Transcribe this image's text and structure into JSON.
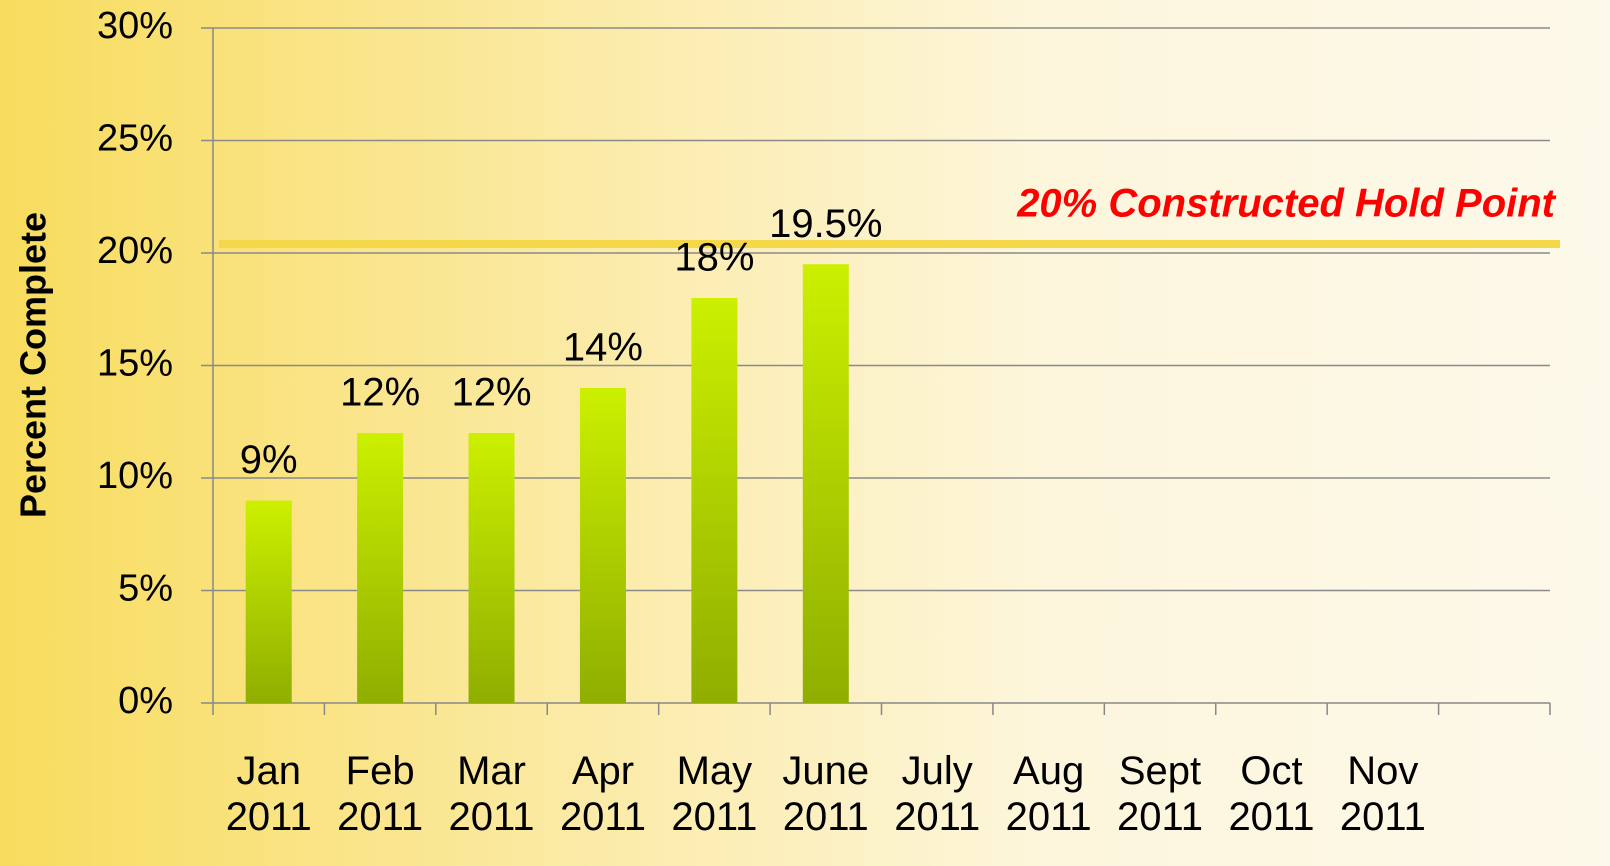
{
  "chart_data": {
    "type": "bar",
    "y_label": "Percent Complete",
    "categories": [
      "Jan 2011",
      "Feb 2011",
      "Mar 2011",
      "Apr 2011",
      "May 2011",
      "June 2011",
      "July 2011",
      "Aug 2011",
      "Sept 2011",
      "Oct 2011",
      "Nov 2011",
      null
    ],
    "values": [
      9,
      12,
      12,
      14,
      18,
      19.5,
      null,
      null,
      null,
      null,
      null,
      null
    ],
    "value_labels": [
      "9%",
      "12%",
      "12%",
      "14%",
      "18%",
      "19.5%",
      null,
      null,
      null,
      null,
      null,
      null
    ],
    "color": "#b8e000",
    "ylim": [
      0,
      30
    ],
    "yticks": [
      {
        "value": 0,
        "label": "0%"
      },
      {
        "value": 5,
        "label": "5%"
      },
      {
        "value": 10,
        "label": "10%"
      },
      {
        "value": 15,
        "label": "15%"
      },
      {
        "value": 20,
        "label": "20%"
      },
      {
        "value": 25,
        "label": "25%"
      },
      {
        "value": 30,
        "label": "30%"
      }
    ],
    "grid": true,
    "reference_line": {
      "value": 20.4,
      "label": "20% Constructed Hold Point",
      "color": "#f5d84a"
    }
  }
}
